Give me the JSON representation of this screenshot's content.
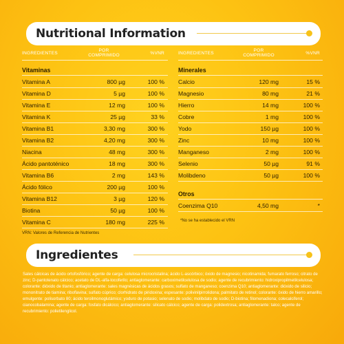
{
  "nutrition": {
    "title": "Nutritional Information",
    "left": {
      "headers": {
        "name": "INGREDIENTES",
        "amount": "POR COMPRIMIDO",
        "vnr": "%VNR"
      },
      "section": "Vitaminas",
      "rows": [
        {
          "name": "Vitamina A",
          "amount": "800 µg",
          "vnr": "100 %"
        },
        {
          "name": "Vitamina D",
          "amount": "5 µg",
          "vnr": "100 %"
        },
        {
          "name": "Vitamina E",
          "amount": "12 mg",
          "vnr": "100 %"
        },
        {
          "name": "Vitamina K",
          "amount": "25 µg",
          "vnr": "33 %"
        },
        {
          "name": "Vitamina B1",
          "amount": "3,30 mg",
          "vnr": "300 %"
        },
        {
          "name": "Vitamina B2",
          "amount": "4,20 mg",
          "vnr": "300 %"
        },
        {
          "name": "Niacina",
          "amount": "48 mg",
          "vnr": "300 %"
        },
        {
          "name": "Ácido pantoténico",
          "amount": "18 mg",
          "vnr": "300 %"
        },
        {
          "name": "Vitamina B6",
          "amount": "2 mg",
          "vnr": "143 %"
        },
        {
          "name": "Ácido fólico",
          "amount": "200 µg",
          "vnr": "100 %"
        },
        {
          "name": "Vitamina B12",
          "amount": "3 µg",
          "vnr": "120 %"
        },
        {
          "name": "Biotina",
          "amount": "50 µg",
          "vnr": "100 %"
        },
        {
          "name": "Vitamina C",
          "amount": "180 mg",
          "vnr": "225 %"
        }
      ],
      "note": "VRN: Valores de Referencia de Nutrientes"
    },
    "right": {
      "headers": {
        "name": "INGREDIENTES",
        "amount": "POR COMPRIMIDO",
        "vnr": "%VNR"
      },
      "section": "Minerales",
      "rows": [
        {
          "name": "Calcio",
          "amount": "120 mg",
          "vnr": "15 %"
        },
        {
          "name": "Magnesio",
          "amount": "80 mg",
          "vnr": "21 %"
        },
        {
          "name": "Hierro",
          "amount": "14 mg",
          "vnr": "100 %"
        },
        {
          "name": "Cobre",
          "amount": "1 mg",
          "vnr": "100 %"
        },
        {
          "name": "Yodo",
          "amount": "150 µg",
          "vnr": "100 %"
        },
        {
          "name": "Zinc",
          "amount": "10 mg",
          "vnr": "100 %"
        },
        {
          "name": "Manganeso",
          "amount": "2 mg",
          "vnr": "100 %"
        },
        {
          "name": "Selenio",
          "amount": "50 µg",
          "vnr": "91 %"
        },
        {
          "name": "Molibdeno",
          "amount": "50 µg",
          "vnr": "100 %"
        }
      ],
      "section2": "Otros",
      "rows2": [
        {
          "name": "Coenzima Q10",
          "amount": "4,50 mg",
          "vnr": "*"
        }
      ],
      "note": "*No se ha establecido el VRN"
    }
  },
  "ingredients": {
    "title": "Ingredientes",
    "text": "Sales cálcicas de ácido ortofosfórico; agente de carga: celulosa microcristalina; ácido L-ascórbico; óxido de magnesio; nicotinamida; fumarato ferroso; citrato de zinc; D-pantotenato cálcico; acetato de DL-alfa-tocoferilo; antiaglomerante: carboximetilcelulosa de sodio; agente de recubrimiento: hidroxipropilmetilcelulosa; colorante: dióxido de titanio; antiaglomerante: sales magnésicas de ácidos grasos; sulfato de manganeso; coenzima Q10; antiaglomerante: dióxido de silicio; mononitrato de tiamina; riboflavina; sulfato cúprico; clorhidrato de piridoxina; espesante: polivinilpirrolidona; palmitato de retinol; colorante: óxido de hierro amarillo; emulgente: polisorbato 80; ácido teroilmonoglutámico; yoduro de potasio; selenato de sodio; molibdato de sodio; D-biotina; filomenadiona; colecalciferol; cianocobalamina; agente de carga: fosfato dicálcico; antiaglomerante: silicato cálcico; agente de carga: polidextrosa; antiaglomerante: talco; agente de recubrimiento: polietilenglicol."
  },
  "colors": {
    "background": "#fdc212",
    "accent": "#f7c21a",
    "pill": "#ffffff"
  }
}
